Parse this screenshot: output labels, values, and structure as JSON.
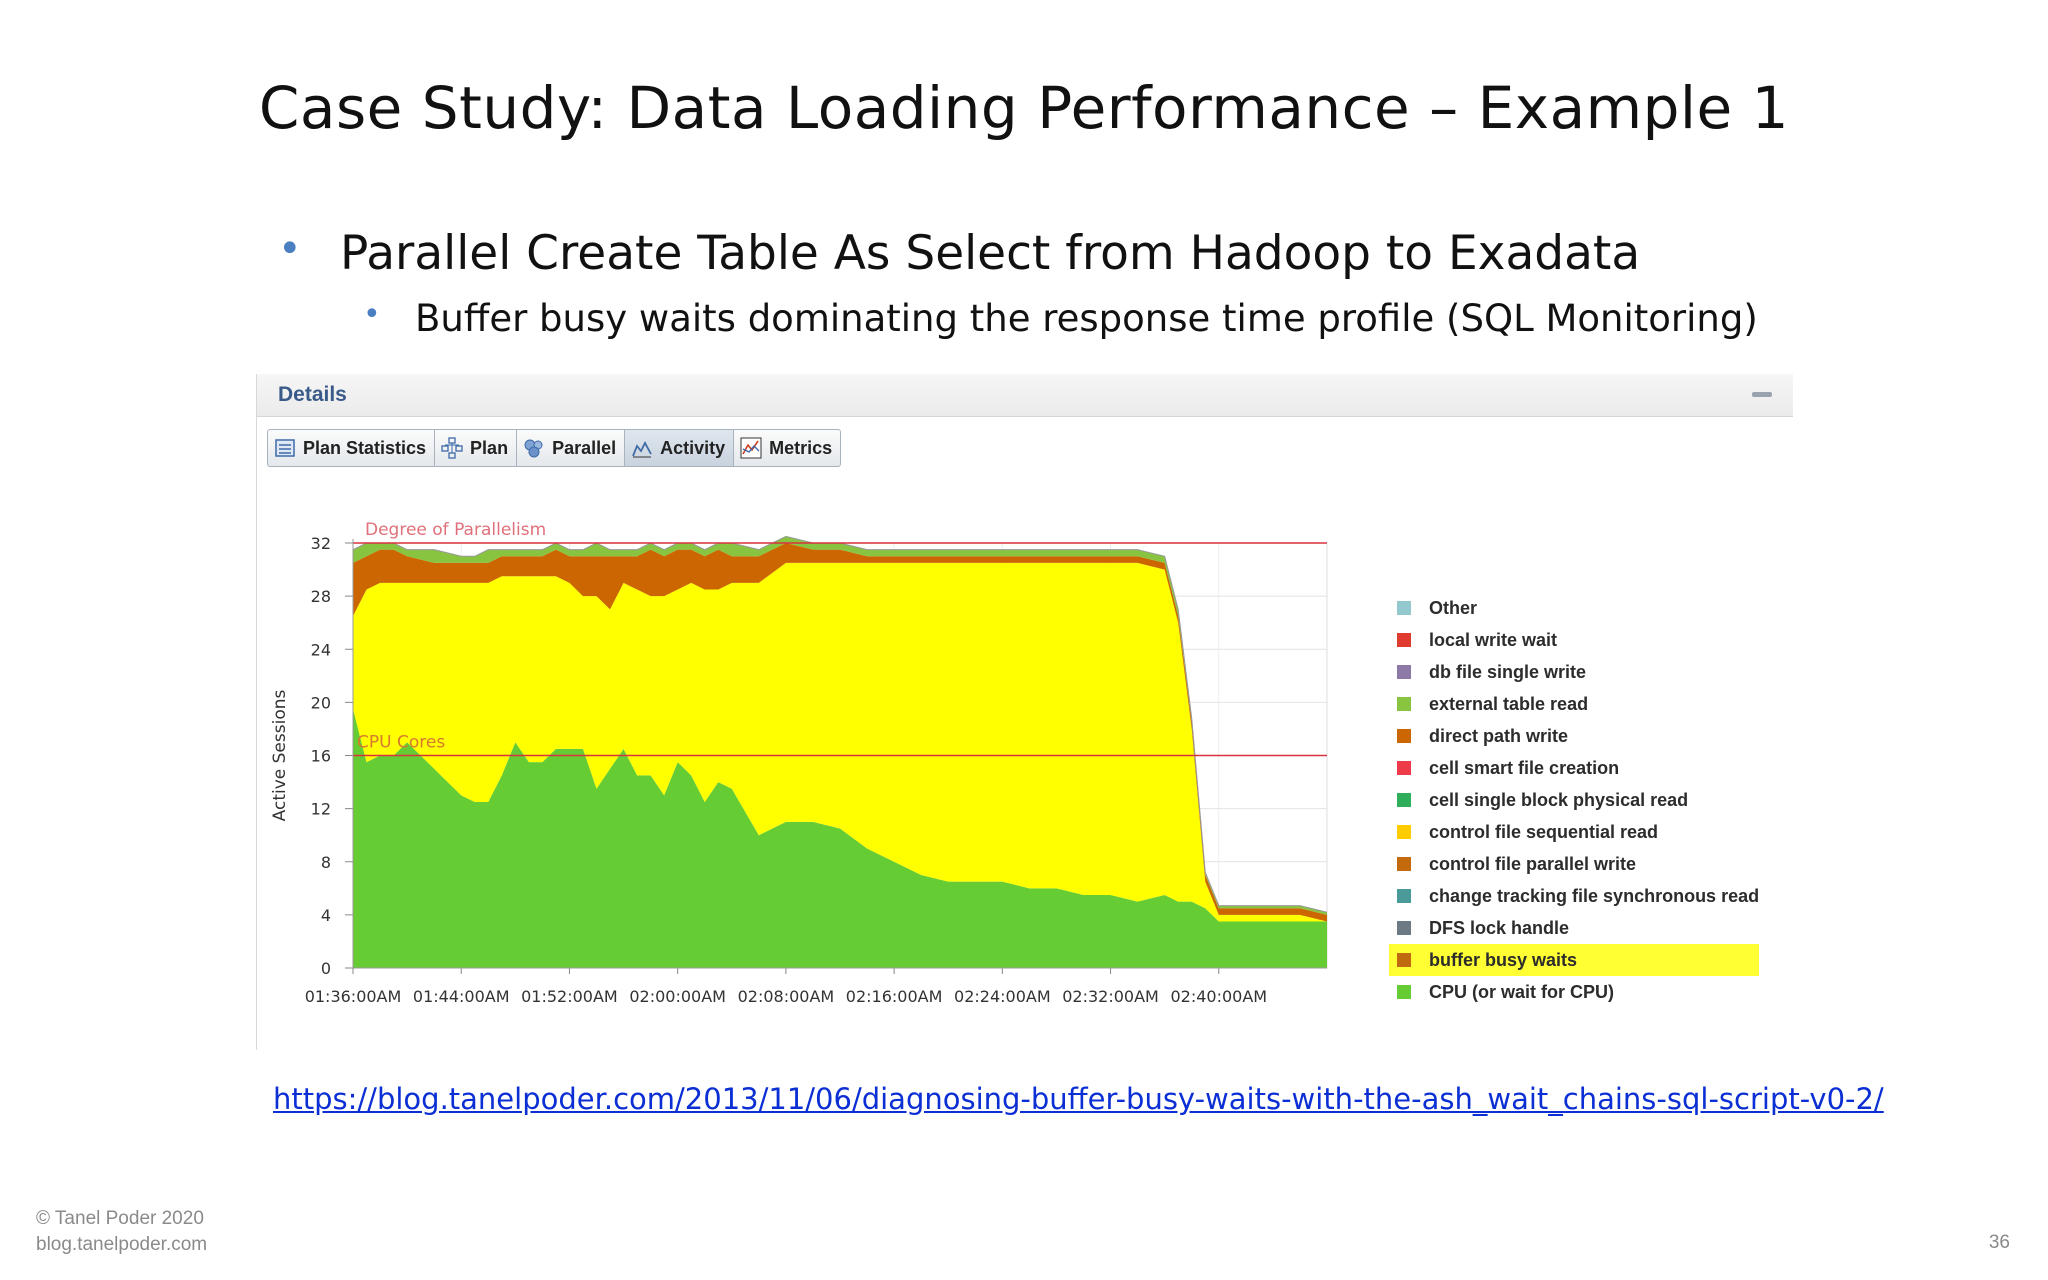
{
  "slide": {
    "title": "Case Study: Data Loading Performance – Example 1",
    "bullet1": "Parallel Create Table As Select from Hadoop to Exadata",
    "bullet2": "Buffer busy waits dominating the response time profile (SQL Monitoring)",
    "link": "https://blog.tanelpoder.com/2013/11/06/diagnosing-buffer-busy-waits-with-the-ash_wait_chains-sql-script-v0-2/",
    "copyright": "© Tanel Poder 2020",
    "site": "blog.tanelpoder.com",
    "page_number": "36"
  },
  "panel": {
    "title": "Details",
    "tabs": [
      {
        "label": "Plan Statistics",
        "icon": "table-icon"
      },
      {
        "label": "Plan",
        "icon": "tree-icon"
      },
      {
        "label": "Parallel",
        "icon": "gears-icon"
      },
      {
        "label": "Activity",
        "icon": "area-chart-icon",
        "selected": true
      },
      {
        "label": "Metrics",
        "icon": "line-chart-icon"
      }
    ]
  },
  "colors": {
    "accent_bullet": "#4a7fc1",
    "link": "#0b2fd4",
    "cpu": "#66cc33",
    "buffer_busy": "#cc6600",
    "other_yellow": "#ffff00",
    "reference_line": "#d9323f",
    "legend_highlight": "#ffff33"
  },
  "chart_data": {
    "type": "area",
    "ylabel": "Active Sessions",
    "ylim": [
      0,
      32
    ],
    "yticks": [
      "0",
      "4",
      "8",
      "12",
      "16",
      "20",
      "24",
      "28",
      "32"
    ],
    "xtick_labels": [
      "01:36:00AM",
      "01:44:00AM",
      "01:52:00AM",
      "02:00:00AM",
      "02:08:00AM",
      "02:16:00AM",
      "02:24:00AM",
      "02:32:00AM",
      "02:40:00AM"
    ],
    "x_minutes": [
      0,
      1,
      2,
      3,
      4,
      6,
      8,
      9,
      10,
      11,
      12,
      13,
      14,
      15,
      16,
      17,
      18,
      19,
      20,
      21,
      22,
      23,
      24,
      25,
      26,
      27,
      28,
      30,
      32,
      34,
      36,
      38,
      40,
      42,
      44,
      46,
      48,
      50,
      52,
      54,
      56,
      58,
      60,
      61,
      62,
      63,
      64,
      66,
      68,
      70,
      72
    ],
    "grid": true,
    "stacking": "stacked",
    "series": [
      {
        "name": "CPU (or wait for CPU)",
        "color": "#66cc33",
        "values": [
          19.5,
          15.5,
          16,
          16,
          17,
          15,
          13,
          12.5,
          12.5,
          14.5,
          17,
          15.5,
          15.5,
          16.5,
          16.5,
          16.5,
          13.5,
          15,
          16.5,
          14.5,
          14.5,
          13,
          15.5,
          14.5,
          12.5,
          14,
          13.5,
          10,
          11,
          11,
          10.5,
          9,
          8,
          7,
          6.5,
          6.5,
          6.5,
          6,
          6,
          5.5,
          5.5,
          5,
          5.5,
          5,
          5,
          4.5,
          3.5,
          3.5,
          3.5,
          3.5,
          3.5
        ]
      },
      {
        "name": "buffer busy waits",
        "color": "#ffff00",
        "values": [
          7,
          13,
          13,
          13,
          12,
          14,
          16,
          16.5,
          16.5,
          15,
          12.5,
          14,
          14,
          13,
          12.5,
          11.5,
          14.5,
          12,
          12.5,
          14,
          13.5,
          15,
          13,
          14.5,
          16,
          14.5,
          15.5,
          19,
          19.5,
          19.5,
          20,
          21.5,
          22.5,
          23.5,
          24,
          24,
          24,
          24.5,
          24.5,
          25,
          25,
          25.5,
          24.5,
          21,
          13,
          2,
          0.5,
          0.5,
          0.5,
          0.5,
          0
        ]
      },
      {
        "name": "direct path write",
        "color": "#cc6600",
        "values": [
          4,
          2.5,
          2.5,
          2.5,
          2,
          1.5,
          1.5,
          1.5,
          1.5,
          1.5,
          1.5,
          1.5,
          1.5,
          2,
          2,
          3,
          3,
          4,
          2,
          2.5,
          3.5,
          3,
          3,
          2.5,
          2.5,
          3,
          2,
          2,
          1.5,
          1,
          1,
          0.5,
          0.5,
          0.5,
          0.5,
          0.5,
          0.5,
          0.5,
          0.5,
          0.5,
          0.5,
          0.5,
          0.5,
          0.5,
          0.5,
          0.5,
          0.5,
          0.5,
          0.5,
          0.5,
          0.5
        ]
      },
      {
        "name": "external table read",
        "color": "#88c440",
        "values": [
          1,
          1,
          0.5,
          0.5,
          0.5,
          1,
          0.5,
          0.5,
          1,
          0.5,
          0.5,
          0.5,
          0.5,
          0.5,
          0.5,
          0.5,
          1,
          0.5,
          0.5,
          0.5,
          0.5,
          0.5,
          0.5,
          0.5,
          0.5,
          0.5,
          1,
          0.5,
          0.5,
          0.5,
          0.5,
          0.5,
          0.5,
          0.5,
          0.5,
          0.5,
          0.5,
          0.5,
          0.5,
          0.5,
          0.5,
          0.5,
          0.5,
          0.5,
          0.3,
          0.2,
          0.2,
          0.2,
          0.2,
          0.2,
          0.2
        ]
      }
    ],
    "reference_lines": [
      {
        "label": "Degree of Parallelism",
        "value": 32,
        "color": "#d9323f"
      },
      {
        "label": "CPU Cores",
        "value": 16,
        "color": "#d9323f"
      }
    ],
    "legend_position": "right",
    "legend": [
      {
        "label": "Other",
        "color": "#93c9cc"
      },
      {
        "label": "local write wait",
        "color": "#e03b2f"
      },
      {
        "label": "db file single write",
        "color": "#8f79a6"
      },
      {
        "label": "external table read",
        "color": "#88c440"
      },
      {
        "label": "direct path write",
        "color": "#cc6600"
      },
      {
        "label": "cell smart file creation",
        "color": "#ee3b4a"
      },
      {
        "label": "cell single block physical read",
        "color": "#2eae5a"
      },
      {
        "label": "control file sequential read",
        "color": "#ffcc00"
      },
      {
        "label": "control file parallel write",
        "color": "#c46a0c"
      },
      {
        "label": "change tracking file synchronous read",
        "color": "#4a9a9a"
      },
      {
        "label": "DFS lock handle",
        "color": "#6c7a86"
      },
      {
        "label": "buffer busy waits",
        "color": "#c06a10",
        "highlighted": true
      },
      {
        "label": "CPU (or wait for CPU)",
        "color": "#66cc33"
      }
    ]
  }
}
